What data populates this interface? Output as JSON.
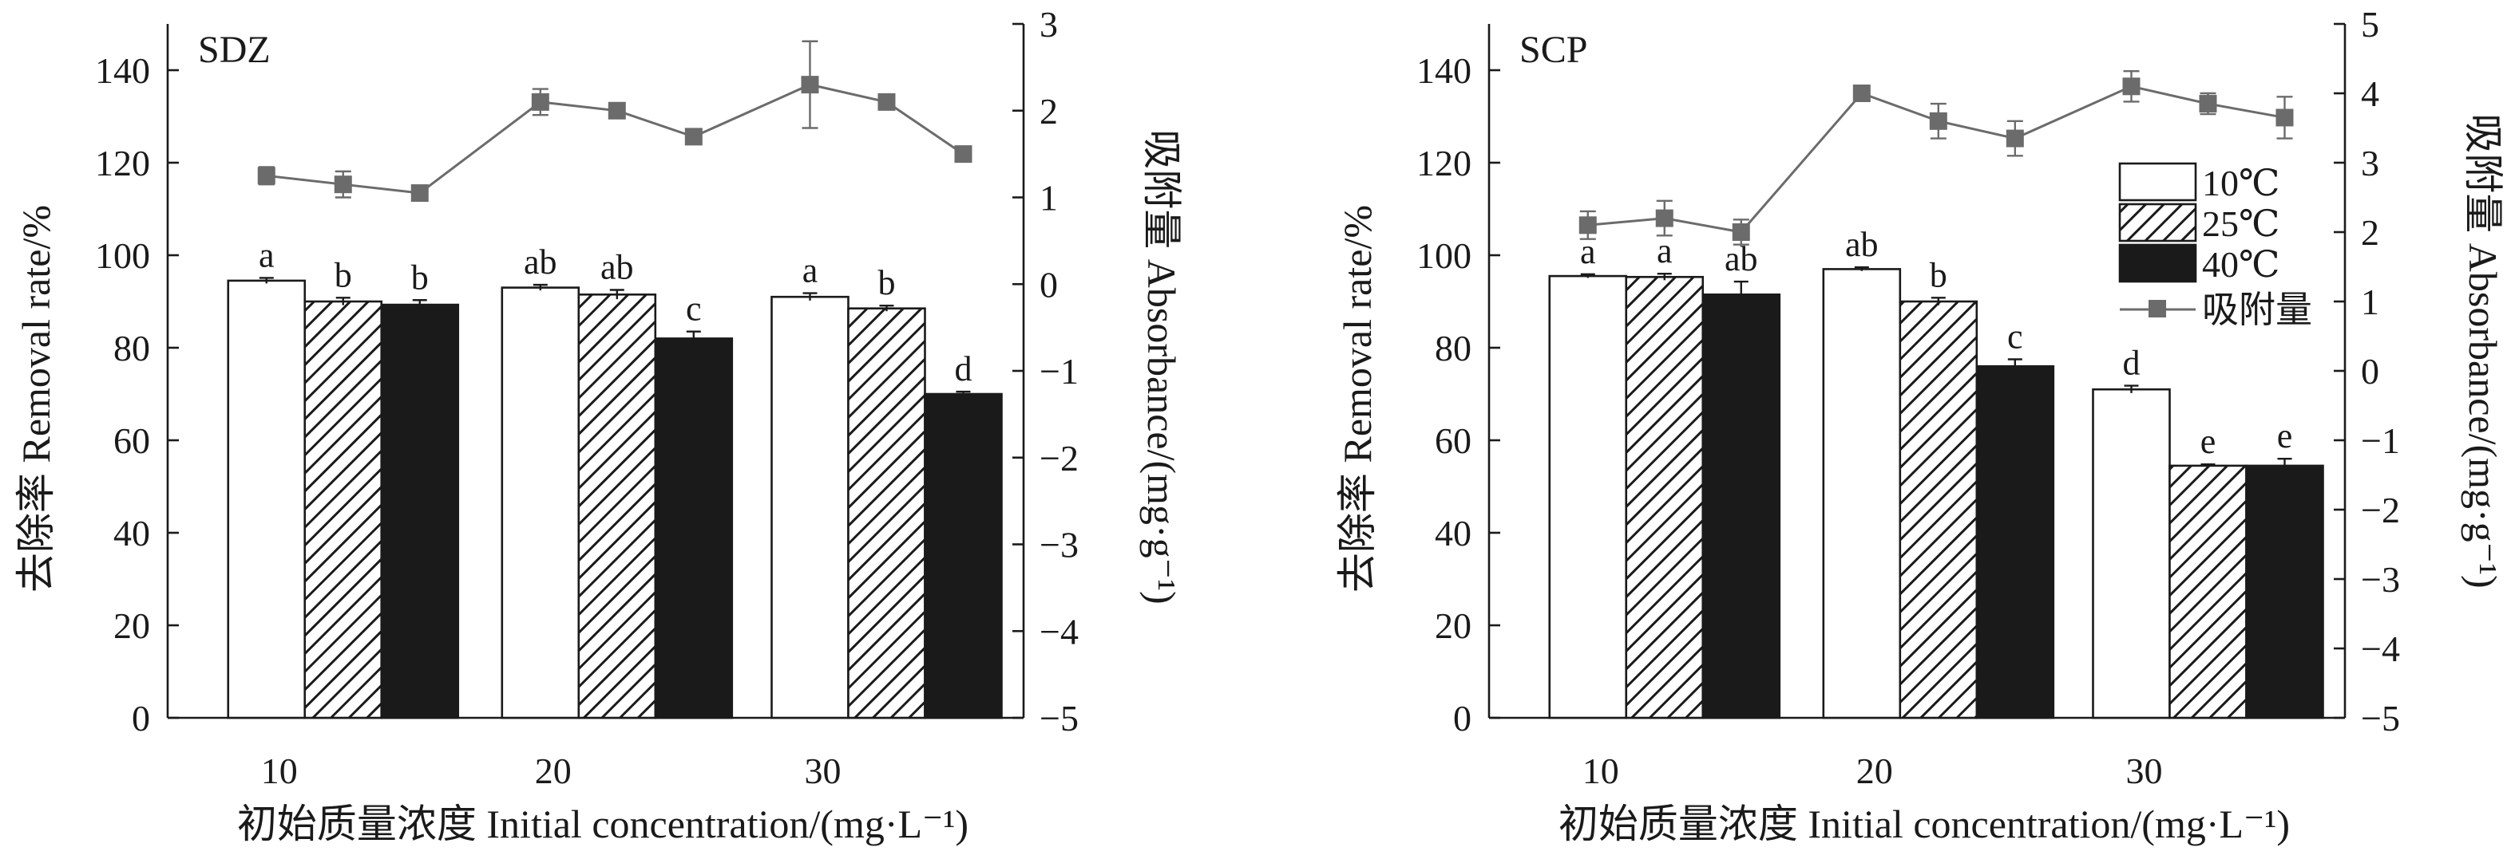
{
  "colors": {
    "bar_10": "#ffffff",
    "bar_25": "hatch",
    "bar_40": "#1a1a1a",
    "adsorption": "#6b6b6b",
    "axis": "#1a1a1a"
  },
  "chart_data": [
    {
      "type": "bar",
      "panel_label": "SDZ",
      "xlabel": "初始质量浓度 Initial concentration/(mg·L⁻¹)",
      "ylabel": "去除率 Removal rate/%",
      "y2label": "吸附量 Absorbance/(mg·g⁻¹)",
      "categories": [
        "10",
        "20",
        "30"
      ],
      "ylim": [
        0,
        150
      ],
      "yticks": [
        "0",
        "20",
        "40",
        "60",
        "80",
        "100",
        "120",
        "140"
      ],
      "y2lim": [
        -5,
        3
      ],
      "y2ticks": [
        "−5",
        "−4",
        "−3",
        "−2",
        "−1",
        "0",
        "1",
        "2",
        "3"
      ],
      "series": [
        {
          "name": "10℃",
          "values": [
            94.5,
            93,
            91
          ],
          "errors": [
            0.6,
            0.6,
            0.8
          ],
          "letters": [
            "a",
            "ab",
            "a"
          ]
        },
        {
          "name": "25℃",
          "values": [
            90,
            91.5,
            88.5
          ],
          "errors": [
            0.8,
            1.0,
            0.6
          ],
          "letters": [
            "b",
            "ab",
            "b"
          ]
        },
        {
          "name": "40℃",
          "values": [
            89.3,
            82,
            70
          ],
          "errors": [
            1.0,
            1.5,
            0.5
          ],
          "letters": [
            "b",
            "c",
            "d"
          ]
        }
      ],
      "adsorption": {
        "name": "吸附量",
        "values": [
          1.25,
          1.15,
          1.05,
          2.1,
          2.0,
          1.7,
          2.3,
          2.1,
          1.5
        ],
        "errors": [
          0.1,
          0.15,
          0.08,
          0.15,
          0.04,
          0.04,
          0.5,
          0.04,
          0.04
        ]
      },
      "legend": false
    },
    {
      "type": "bar",
      "panel_label": "SCP",
      "xlabel": "初始质量浓度 Initial concentration/(mg·L⁻¹)",
      "ylabel": "去除率 Removal rate/%",
      "y2label": "吸附量 Absorbance/(mg·g⁻¹)",
      "categories": [
        "10",
        "20",
        "30"
      ],
      "ylim": [
        0,
        150
      ],
      "yticks": [
        "0",
        "20",
        "40",
        "60",
        "80",
        "100",
        "120",
        "140"
      ],
      "y2lim": [
        -5,
        5
      ],
      "y2ticks": [
        "−5",
        "−4",
        "−3",
        "−2",
        "−1",
        "0",
        "1",
        "2",
        "3",
        "4",
        "5"
      ],
      "series": [
        {
          "name": "10℃",
          "values": [
            95.5,
            97,
            71
          ],
          "errors": [
            0.4,
            0.4,
            0.8
          ],
          "letters": [
            "a",
            "ab",
            "d"
          ]
        },
        {
          "name": "25℃",
          "values": [
            95.3,
            90,
            54.5
          ],
          "errors": [
            0.7,
            0.8,
            0.3
          ],
          "letters": [
            "a",
            "b",
            "e"
          ]
        },
        {
          "name": "40℃",
          "values": [
            91.5,
            76,
            54.5
          ],
          "errors": [
            2.8,
            1.5,
            1.5
          ],
          "letters": [
            "ab",
            "c",
            "e"
          ]
        }
      ],
      "adsorption": {
        "name": "吸附量",
        "values": [
          2.1,
          2.2,
          2.0,
          4.0,
          3.6,
          3.35,
          4.1,
          3.85,
          3.65
        ],
        "errors": [
          0.2,
          0.25,
          0.18,
          0.05,
          0.25,
          0.25,
          0.22,
          0.15,
          0.3
        ]
      },
      "legend": true
    }
  ]
}
